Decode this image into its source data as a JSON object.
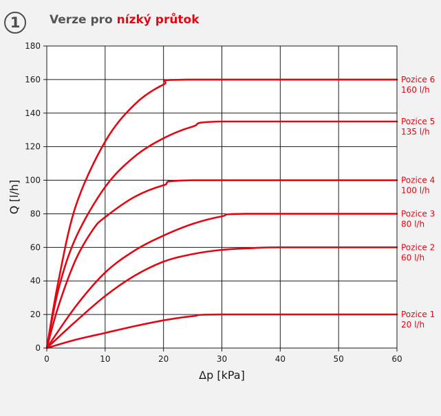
{
  "header": {
    "badge": "1",
    "title_prefix": "Verze pro ",
    "title_accent": "nízký průtok"
  },
  "colors": {
    "curve": "#e30613",
    "accent": "#e30613",
    "grid": "#1a1a1a",
    "background": "#f2f2f2"
  },
  "chart_data": {
    "type": "line",
    "title": "Verze pro nízký průtok",
    "xlabel": "Δp [kPa]",
    "ylabel": "Q [l/h]",
    "xlim": [
      0,
      60
    ],
    "ylim": [
      0,
      180
    ],
    "xticks": [
      0,
      10,
      20,
      30,
      40,
      50,
      60
    ],
    "yticks": [
      0,
      20,
      40,
      60,
      80,
      100,
      120,
      140,
      160,
      180
    ],
    "grid": true,
    "series": [
      {
        "name": "Pozice 1",
        "value_label": "20 l/h",
        "x": [
          0,
          5,
          10,
          15,
          20,
          25,
          30,
          60
        ],
        "y": [
          0,
          5,
          9,
          13,
          16.5,
          19,
          20,
          20
        ]
      },
      {
        "name": "Pozice 2",
        "value_label": "60 l/h",
        "x": [
          0,
          5,
          10,
          15,
          20,
          25,
          30,
          35,
          40,
          60
        ],
        "y": [
          0,
          16,
          31,
          43,
          51.5,
          56,
          58.5,
          59.5,
          60,
          60
        ]
      },
      {
        "name": "Pozice 3",
        "value_label": "80 l/h",
        "x": [
          0,
          5,
          10,
          15,
          20,
          25,
          30,
          34,
          60
        ],
        "y": [
          0,
          25,
          45,
          58,
          67,
          74,
          78.5,
          80,
          80
        ]
      },
      {
        "name": "Pozice 4",
        "value_label": "100 l/h",
        "x": [
          0,
          2,
          5,
          8,
          10,
          15,
          20,
          25,
          60
        ],
        "y": [
          0,
          25,
          53,
          71,
          78,
          90,
          97,
          100,
          100
        ]
      },
      {
        "name": "Pozice 5",
        "value_label": "135 l/h",
        "x": [
          0,
          2,
          5,
          10,
          15,
          20,
          25,
          30,
          60
        ],
        "y": [
          0,
          35,
          66,
          96,
          114,
          125,
          132,
          135,
          135
        ]
      },
      {
        "name": "Pozice 6",
        "value_label": "160 l/h",
        "x": [
          0,
          2,
          5,
          10,
          15,
          20,
          24,
          60
        ],
        "y": [
          0,
          40,
          85,
          123,
          145,
          157,
          160,
          160
        ]
      }
    ]
  }
}
